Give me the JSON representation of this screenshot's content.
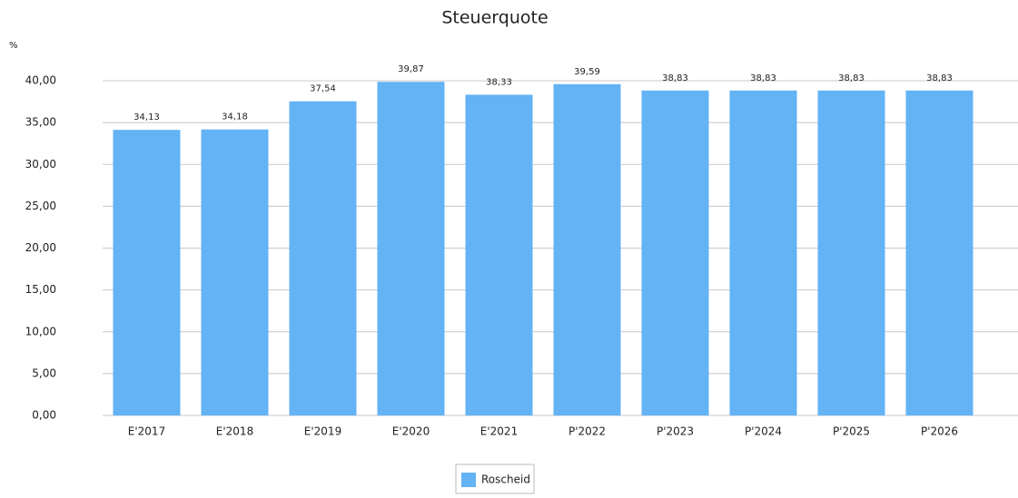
{
  "chart_data": {
    "type": "bar",
    "title": "Steuerquote",
    "y_label": "%",
    "categories": [
      "E'2017",
      "E'2018",
      "E'2019",
      "E'2020",
      "E'2021",
      "P'2022",
      "P'2023",
      "P'2024",
      "P'2025",
      "P'2026"
    ],
    "series": [
      {
        "name": "Roscheid",
        "color": "#63b3f5",
        "values": [
          34.13,
          34.18,
          37.54,
          39.87,
          38.33,
          39.59,
          38.83,
          38.83,
          38.83,
          38.83
        ],
        "value_labels": [
          "34,13",
          "34,18",
          "37,54",
          "39,87",
          "38,33",
          "39,59",
          "38,83",
          "38,83",
          "38,83",
          "38,83"
        ]
      }
    ],
    "ylim": [
      0,
      40
    ],
    "yticks": [
      {
        "value": 0,
        "label": "0,00"
      },
      {
        "value": 5,
        "label": "5,00"
      },
      {
        "value": 10,
        "label": "10,00"
      },
      {
        "value": 15,
        "label": "15,00"
      },
      {
        "value": 20,
        "label": "20,00"
      },
      {
        "value": 25,
        "label": "25,00"
      },
      {
        "value": 30,
        "label": "30,00"
      },
      {
        "value": 35,
        "label": "35,00"
      },
      {
        "value": 40,
        "label": "40,00"
      }
    ],
    "grid": true,
    "legend": "bottom"
  }
}
